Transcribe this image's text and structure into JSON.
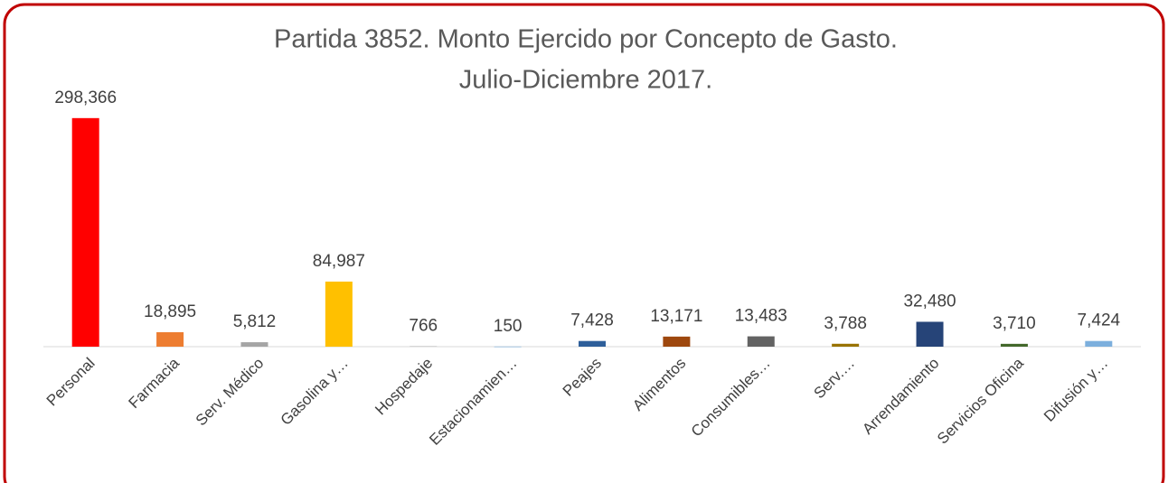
{
  "chart_data": {
    "type": "bar",
    "title": "Partida 3852. Monto Ejercido por Concepto de Gasto.",
    "subtitle": "Julio-Diciembre 2017.",
    "categories": [
      "Personal",
      "Farmacia",
      "Serv. Médico",
      "Gasolina y…",
      "Hospedaje",
      "Estacionamien…",
      "Peajes",
      "Alimentos",
      "Consumibles…",
      "Serv.…",
      "Arrendamiento",
      "Servicios Oficina",
      "Difusión y…"
    ],
    "values": [
      298366,
      18895,
      5812,
      84987,
      766,
      150,
      7428,
      13171,
      13483,
      3788,
      32480,
      3710,
      7424
    ],
    "value_labels": [
      "298,366",
      "18,895",
      "5,812",
      "84,987",
      "766",
      "150",
      "7,428",
      "13,171",
      "13,483",
      "3,788",
      "32,480",
      "3,710",
      "7,424"
    ],
    "colors": [
      "#ff0000",
      "#ed7d31",
      "#a5a5a5",
      "#ffc000",
      "#bfbfbf",
      "#5b9bd5",
      "#2e5f9a",
      "#9e480e",
      "#636363",
      "#997300",
      "#264478",
      "#43682b",
      "#7cafdd"
    ],
    "ylim": [
      0,
      350000
    ]
  }
}
